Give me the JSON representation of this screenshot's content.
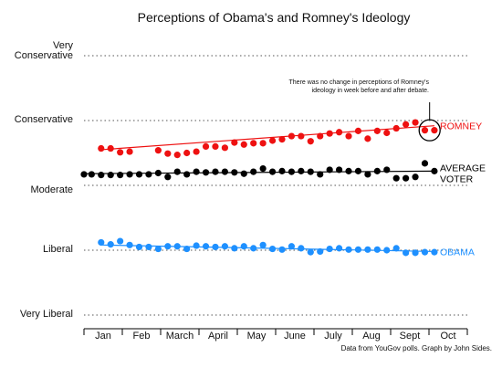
{
  "chart_data": {
    "type": "scatter",
    "title": "Perceptions of Obama's and Romney's Ideology",
    "y_categories": [
      {
        "label": "Very Conservative",
        "lines": [
          "Very",
          "Conservative"
        ],
        "value": 3
      },
      {
        "label": "Conservative",
        "lines": [
          "Conservative"
        ],
        "value": 2
      },
      {
        "label": "Moderate",
        "lines": [
          "Moderate"
        ],
        "value": 1
      },
      {
        "label": "Liberal",
        "lines": [
          "Liberal"
        ],
        "value": 0
      },
      {
        "label": "Very Liberal",
        "lines": [
          "Very Liberal"
        ],
        "value": -1
      }
    ],
    "x_months": [
      "Jan",
      "Feb",
      "March",
      "April",
      "May",
      "June",
      "July",
      "Aug",
      "Sept",
      "Oct"
    ],
    "grid": true,
    "series": [
      {
        "name": "ROMNEY",
        "color": "#ee1111",
        "x": [
          1.8,
          2.8,
          3.8,
          4.8,
          7.8,
          8.8,
          9.8,
          10.8,
          11.8,
          12.8,
          13.8,
          14.8,
          15.8,
          16.8,
          17.8,
          18.8,
          19.8,
          20.8,
          21.8,
          22.8,
          23.8,
          24.8,
          25.8,
          26.8,
          27.8,
          28.8,
          29.8,
          30.8,
          31.8,
          32.8,
          33.8,
          34.8,
          35.8,
          36.8
        ],
        "y": [
          1.57,
          1.57,
          1.51,
          1.52,
          1.54,
          1.49,
          1.47,
          1.5,
          1.52,
          1.6,
          1.6,
          1.58,
          1.66,
          1.63,
          1.65,
          1.65,
          1.69,
          1.71,
          1.76,
          1.76,
          1.68,
          1.76,
          1.8,
          1.82,
          1.76,
          1.84,
          1.72,
          1.84,
          1.81,
          1.88,
          1.94,
          1.97,
          1.85,
          1.85
        ],
        "trend": [
          1.55,
          1.92
        ]
      },
      {
        "name": "AVERAGE VOTER",
        "label_lines": [
          "AVERAGE",
          "VOTER"
        ],
        "color": "#000000",
        "x": [
          0,
          0.8,
          1.8,
          2.8,
          3.8,
          4.8,
          5.8,
          6.8,
          7.8,
          8.8,
          9.8,
          10.8,
          11.8,
          12.8,
          13.8,
          14.8,
          15.8,
          16.8,
          17.8,
          18.8,
          19.8,
          20.8,
          21.8,
          22.8,
          23.8,
          24.8,
          25.8,
          26.8,
          27.8,
          28.8,
          29.8,
          30.8,
          31.8,
          32.8,
          33.8,
          34.8,
          35.8,
          36.8
        ],
        "y": [
          1.17,
          1.17,
          1.16,
          1.16,
          1.16,
          1.17,
          1.17,
          1.17,
          1.19,
          1.13,
          1.21,
          1.17,
          1.21,
          1.2,
          1.21,
          1.21,
          1.2,
          1.18,
          1.21,
          1.26,
          1.21,
          1.22,
          1.21,
          1.22,
          1.21,
          1.17,
          1.24,
          1.24,
          1.22,
          1.22,
          1.17,
          1.22,
          1.24,
          1.11,
          1.11,
          1.13,
          1.34,
          1.22
        ],
        "trend": [
          1.18,
          1.22
        ]
      },
      {
        "name": "OBAMA",
        "color": "#1e90ff",
        "x": [
          1.8,
          2.8,
          3.8,
          4.8,
          5.8,
          6.8,
          7.8,
          8.8,
          9.8,
          10.8,
          11.8,
          12.8,
          13.8,
          14.8,
          15.8,
          16.8,
          17.8,
          18.8,
          19.8,
          20.8,
          21.8,
          22.8,
          23.8,
          24.8,
          25.8,
          26.8,
          27.8,
          28.8,
          29.8,
          30.8,
          31.8,
          32.8,
          33.8,
          34.8,
          35.8,
          36.8
        ],
        "y": [
          0.12,
          0.09,
          0.14,
          0.08,
          0.05,
          0.05,
          0.02,
          0.06,
          0.06,
          0.02,
          0.07,
          0.06,
          0.05,
          0.06,
          0.03,
          0.06,
          0.03,
          0.08,
          0.02,
          0.01,
          0.06,
          0.03,
          -0.03,
          -0.02,
          0.02,
          0.03,
          0.01,
          0.01,
          0.01,
          0.01,
          0.0,
          0.03,
          -0.04,
          -0.04,
          -0.03,
          -0.03
        ],
        "trend": [
          0.08,
          -0.02
        ]
      }
    ],
    "annotation": "There was no change in perceptions of Romney's ideology in week before and after debate.",
    "annotation_lines": [
      "There was no change in perceptions of Romney's",
      "ideology in week before and after debate."
    ],
    "source_note": "Data from YouGov polls. Graph by John Sides."
  }
}
